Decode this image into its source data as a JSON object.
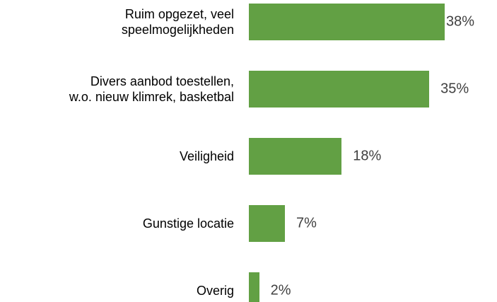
{
  "chart_data": {
    "type": "bar",
    "orientation": "horizontal",
    "categories": [
      "Ruim opgezet, veel\nspeelmogelijkheden",
      "Divers aanbod toestellen,\nw.o. nieuw klimrek, basketbal",
      "Veiligheid",
      "Gunstige locatie",
      "Overig"
    ],
    "values": [
      38,
      35,
      18,
      7,
      2
    ],
    "value_labels": [
      "38%",
      "35%",
      "18%",
      "7%",
      "2%"
    ],
    "color": "#62a044"
  }
}
